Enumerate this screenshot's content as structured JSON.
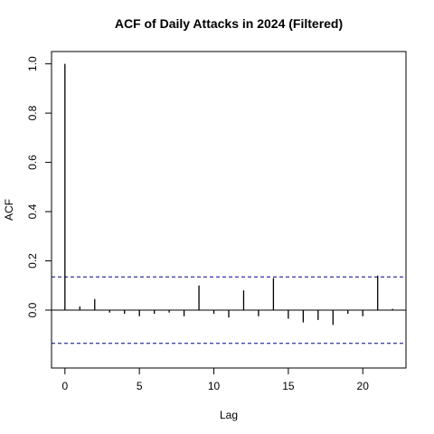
{
  "chart_data": {
    "type": "bar",
    "title": "ACF of Daily Attacks in 2024 (Filtered)",
    "xlabel": "Lag",
    "ylabel": "ACF",
    "xlim": [
      -0.9,
      22.9
    ],
    "ylim": [
      -0.235,
      1.05
    ],
    "x_ticks": [
      0,
      5,
      10,
      15,
      20
    ],
    "y_ticks": [
      0.0,
      0.2,
      0.4,
      0.6,
      0.8,
      1.0
    ],
    "y_tick_labels": [
      "0.0",
      "0.2",
      "0.4",
      "0.6",
      "0.8",
      "1.0"
    ],
    "lags": [
      0,
      1,
      2,
      3,
      4,
      5,
      6,
      7,
      8,
      9,
      10,
      11,
      12,
      13,
      14,
      15,
      16,
      17,
      18,
      19,
      20,
      21,
      22
    ],
    "values": [
      1.0,
      0.015,
      0.045,
      -0.01,
      -0.015,
      -0.025,
      -0.015,
      -0.01,
      -0.025,
      0.1,
      -0.015,
      -0.03,
      0.08,
      -0.025,
      0.13,
      -0.035,
      -0.05,
      -0.04,
      -0.06,
      -0.015,
      -0.025,
      0.14,
      0.005
    ],
    "confidence_bound": 0.135,
    "confidence_line_color": "#00008b",
    "zero_line": true,
    "grid": false
  }
}
